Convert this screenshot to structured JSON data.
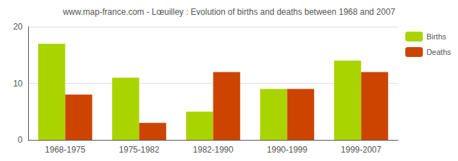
{
  "chart_data": {
    "type": "bar",
    "title": "www.map-france.com - Lœuilley : Evolution of births and deaths between 1968 and 2007",
    "categories": [
      "1968-1975",
      "1975-1982",
      "1982-1990",
      "1990-1999",
      "1999-2007"
    ],
    "series": [
      {
        "name": "Births",
        "color": "#aad400",
        "values": [
          17,
          11,
          5,
          9,
          14
        ]
      },
      {
        "name": "Deaths",
        "color": "#cc4400",
        "values": [
          8,
          3,
          12,
          9,
          12
        ]
      }
    ],
    "ylim": [
      0,
      20
    ],
    "yticks": [
      0,
      10,
      20
    ],
    "grid": true,
    "legend": "upper right"
  }
}
